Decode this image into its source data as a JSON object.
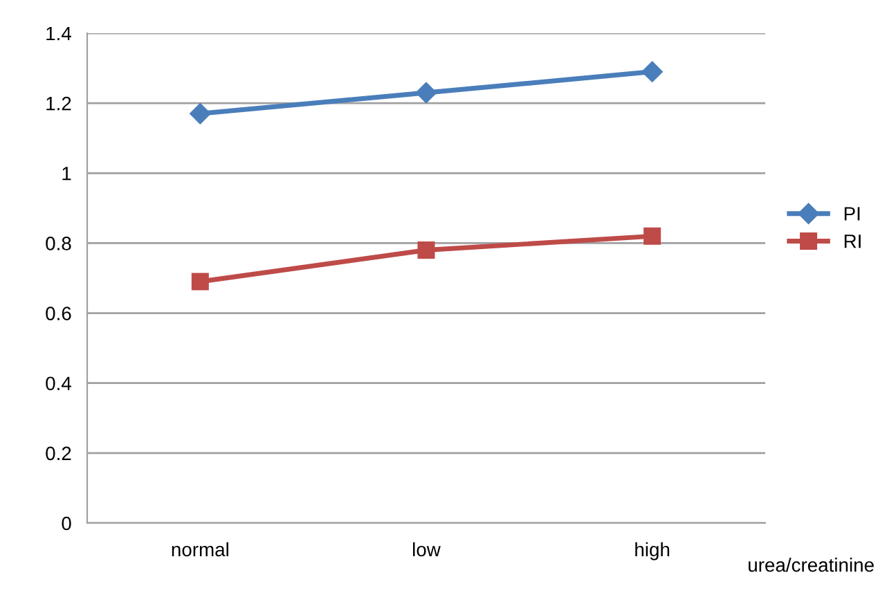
{
  "chart_data": {
    "type": "line",
    "categories": [
      "normal",
      "low",
      "high"
    ],
    "series": [
      {
        "name": "PI",
        "color": "#4a7ebb",
        "marker": "diamond",
        "values": [
          1.17,
          1.23,
          1.29
        ]
      },
      {
        "name": "RI",
        "color": "#be4b48",
        "marker": "square",
        "values": [
          0.69,
          0.78,
          0.82
        ]
      }
    ],
    "xlabel": "urea/creatinine",
    "ylim": [
      0,
      1.4
    ],
    "yticks": [
      0,
      0.2,
      0.4,
      0.6,
      0.8,
      1,
      1.2,
      1.4
    ],
    "grid": "y",
    "legend": "right",
    "line_style": "solid"
  }
}
